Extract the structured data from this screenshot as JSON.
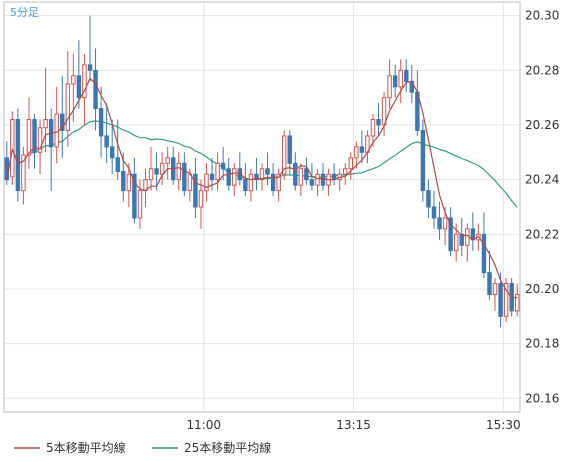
{
  "period_label": "5分足",
  "colors": {
    "up": "#d9534f",
    "down": "#3a78b5",
    "ma5": "#b24a4a",
    "ma25": "#2fa37a",
    "grid": "#e5e5e5",
    "border": "#bdbdbd"
  },
  "chart_data": {
    "type": "candlestick",
    "ylim": [
      20.155,
      20.305
    ],
    "yticks": [
      20.16,
      20.18,
      20.2,
      20.22,
      20.24,
      20.26,
      20.28,
      20.3
    ],
    "ytick_labels": [
      "20.16",
      "20.18",
      "20.20",
      "20.22",
      "20.24",
      "20.26",
      "20.28",
      "20.30"
    ],
    "xticks": [
      {
        "index": 36,
        "label": "11:00"
      },
      {
        "index": 63,
        "label": "13:15"
      },
      {
        "index": 90,
        "label": "15:30"
      }
    ],
    "grid": true,
    "legend_position": "bottom",
    "legend": [
      {
        "name": "5本移動平均線",
        "color_key": "ma5"
      },
      {
        "name": "25本移動平均線",
        "color_key": "ma25"
      }
    ],
    "candles_ohlc": [
      [
        20.248,
        20.254,
        20.238,
        20.24
      ],
      [
        20.241,
        20.265,
        20.238,
        20.262
      ],
      [
        20.262,
        20.266,
        20.232,
        20.236
      ],
      [
        20.236,
        20.252,
        20.231,
        20.249
      ],
      [
        20.249,
        20.27,
        20.244,
        20.262
      ],
      [
        20.262,
        20.264,
        20.244,
        20.25
      ],
      [
        20.25,
        20.262,
        20.242,
        20.259
      ],
      [
        20.259,
        20.281,
        20.25,
        20.262
      ],
      [
        20.262,
        20.266,
        20.236,
        20.252
      ],
      [
        20.252,
        20.274,
        20.246,
        20.264
      ],
      [
        20.264,
        20.278,
        20.248,
        20.258
      ],
      [
        20.258,
        20.287,
        20.252,
        20.275
      ],
      [
        20.275,
        20.286,
        20.261,
        20.278
      ],
      [
        20.278,
        20.291,
        20.266,
        20.27
      ],
      [
        20.27,
        20.286,
        20.26,
        20.282
      ],
      [
        20.282,
        20.3,
        20.276,
        20.28
      ],
      [
        20.28,
        20.288,
        20.258,
        20.266
      ],
      [
        20.266,
        20.274,
        20.248,
        20.256
      ],
      [
        20.256,
        20.268,
        20.246,
        20.252
      ],
      [
        20.252,
        20.262,
        20.242,
        20.248
      ],
      [
        20.248,
        20.262,
        20.24,
        20.243
      ],
      [
        20.243,
        20.25,
        20.232,
        20.236
      ],
      [
        20.236,
        20.246,
        20.23,
        20.242
      ],
      [
        20.242,
        20.248,
        20.224,
        20.226
      ],
      [
        20.226,
        20.24,
        20.222,
        20.236
      ],
      [
        20.236,
        20.244,
        20.23,
        20.24
      ],
      [
        20.24,
        20.252,
        20.236,
        20.244
      ],
      [
        20.244,
        20.25,
        20.236,
        20.242
      ],
      [
        20.242,
        20.25,
        20.238,
        20.246
      ],
      [
        20.246,
        20.252,
        20.24,
        20.248
      ],
      [
        20.248,
        20.252,
        20.238,
        20.24
      ],
      [
        20.24,
        20.25,
        20.236,
        20.246
      ],
      [
        20.246,
        20.25,
        20.234,
        20.236
      ],
      [
        20.236,
        20.244,
        20.232,
        20.242
      ],
      [
        20.242,
        20.248,
        20.226,
        20.23
      ],
      [
        20.23,
        20.24,
        20.222,
        20.236
      ],
      [
        20.236,
        20.246,
        20.232,
        20.242
      ],
      [
        20.242,
        20.248,
        20.236,
        20.24
      ],
      [
        20.24,
        20.25,
        20.236,
        20.246
      ],
      [
        20.246,
        20.252,
        20.24,
        20.244
      ],
      [
        20.244,
        20.248,
        20.236,
        20.238
      ],
      [
        20.238,
        20.246,
        20.234,
        20.244
      ],
      [
        20.244,
        20.25,
        20.238,
        20.24
      ],
      [
        20.24,
        20.246,
        20.234,
        20.236
      ],
      [
        20.236,
        20.244,
        20.232,
        20.242
      ],
      [
        20.242,
        20.248,
        20.236,
        20.24
      ],
      [
        20.24,
        20.246,
        20.236,
        20.244
      ],
      [
        20.244,
        20.25,
        20.238,
        20.242
      ],
      [
        20.242,
        20.246,
        20.234,
        20.236
      ],
      [
        20.236,
        20.244,
        20.232,
        20.242
      ],
      [
        20.242,
        20.258,
        20.24,
        20.256
      ],
      [
        20.256,
        20.258,
        20.242,
        20.246
      ],
      [
        20.246,
        20.25,
        20.236,
        20.238
      ],
      [
        20.238,
        20.246,
        20.234,
        20.244
      ],
      [
        20.244,
        20.248,
        20.238,
        20.24
      ],
      [
        20.24,
        20.246,
        20.236,
        20.238
      ],
      [
        20.238,
        20.244,
        20.234,
        20.242
      ],
      [
        20.242,
        20.246,
        20.236,
        20.238
      ],
      [
        20.238,
        20.244,
        20.234,
        20.242
      ],
      [
        20.242,
        20.246,
        20.238,
        20.24
      ],
      [
        20.24,
        20.244,
        20.236,
        20.242
      ],
      [
        20.242,
        20.246,
        20.238,
        20.244
      ],
      [
        20.244,
        20.25,
        20.24,
        20.248
      ],
      [
        20.248,
        20.254,
        20.244,
        20.252
      ],
      [
        20.252,
        20.258,
        20.246,
        20.25
      ],
      [
        20.25,
        20.258,
        20.246,
        20.256
      ],
      [
        20.256,
        20.264,
        20.252,
        20.262
      ],
      [
        20.262,
        20.268,
        20.256,
        20.26
      ],
      [
        20.26,
        20.272,
        20.256,
        20.27
      ],
      [
        20.27,
        20.284,
        20.266,
        20.278
      ],
      [
        20.278,
        20.282,
        20.27,
        20.274
      ],
      [
        20.274,
        20.284,
        20.268,
        20.28
      ],
      [
        20.28,
        20.284,
        20.272,
        20.276
      ],
      [
        20.276,
        20.282,
        20.268,
        20.272
      ],
      [
        20.272,
        20.28,
        20.256,
        20.258
      ],
      [
        20.258,
        20.262,
        20.232,
        20.236
      ],
      [
        20.236,
        20.24,
        20.226,
        20.23
      ],
      [
        20.23,
        20.236,
        20.222,
        20.226
      ],
      [
        20.226,
        20.232,
        20.218,
        20.222
      ],
      [
        20.222,
        20.23,
        20.216,
        20.226
      ],
      [
        20.226,
        20.23,
        20.212,
        20.214
      ],
      [
        20.214,
        20.224,
        20.21,
        20.22
      ],
      [
        20.22,
        20.226,
        20.212,
        20.216
      ],
      [
        20.216,
        20.224,
        20.21,
        20.222
      ],
      [
        20.222,
        20.228,
        20.214,
        20.218
      ],
      [
        20.218,
        20.224,
        20.214,
        20.22
      ],
      [
        20.22,
        20.228,
        20.204,
        20.206
      ],
      [
        20.206,
        20.214,
        20.196,
        20.198
      ],
      [
        20.198,
        20.204,
        20.192,
        20.202
      ],
      [
        20.202,
        20.206,
        20.186,
        20.19
      ],
      [
        20.19,
        20.204,
        20.188,
        20.202
      ],
      [
        20.202,
        20.204,
        20.19,
        20.192
      ],
      [
        20.192,
        20.202,
        20.19,
        20.198
      ]
    ]
  }
}
